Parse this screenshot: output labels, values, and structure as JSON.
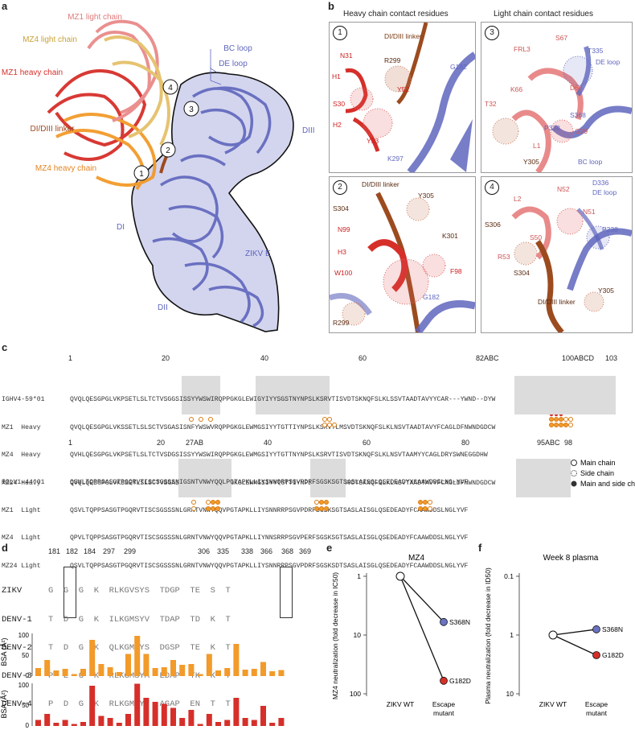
{
  "panels": {
    "a": "a",
    "b": "b",
    "c": "c",
    "d": "d",
    "e": "e",
    "f": "f"
  },
  "panel_a": {
    "labels": {
      "mz1_light": "MZ1 light chain",
      "mz4_light": "MZ4 light chain",
      "mz1_heavy": "MZ1 heavy chain",
      "didiii_linker": "DI/DIII linker",
      "mz4_heavy": "MZ4 heavy chain",
      "bc_loop": "BC loop",
      "de_loop": "DE loop",
      "diii": "DIII",
      "di": "DI",
      "zikv_e": "ZIKV E",
      "dii": "DII"
    },
    "markers": [
      "1",
      "2",
      "3",
      "4"
    ]
  },
  "panel_b": {
    "heavy_title": "Heavy chain contact residues",
    "light_title": "Light chain contact residues",
    "boxes": [
      {
        "num": "1",
        "labels": [
          "DI/DIII linker",
          "N31",
          "R299",
          "G182",
          "H1",
          "Y52",
          "S30",
          "H2",
          "Y53",
          "K297"
        ]
      },
      {
        "num": "3",
        "labels": [
          "S67",
          "FRL3",
          "T335",
          "DE loop",
          "D68",
          "K66",
          "T32",
          "S368",
          "P338",
          "G29",
          "L1",
          "Y305",
          "BC loop"
        ]
      },
      {
        "num": "2",
        "labels": [
          "DI/DIII linker",
          "Y305",
          "S304",
          "N99",
          "K301",
          "H3",
          "F98",
          "W100",
          "G182",
          "R299"
        ]
      },
      {
        "num": "4",
        "labels": [
          "L2",
          "N52",
          "D336",
          "DE loop",
          "N51",
          "S306",
          "P338",
          "S50",
          "R53",
          "S304",
          "Y305",
          "DI/DIII linker"
        ]
      }
    ]
  },
  "panel_c": {
    "heavy_numbering": [
      "1",
      "20",
      "40",
      "60",
      "82ABC",
      "100ABCD",
      "103"
    ],
    "heavy_rows": [
      {
        "name": "IGHV4-59*01",
        "seq": "QVQLQESGPGLVKPSETLSLTCTVSGGSISSYYWSWIRQPPGKGLEWIGYIYYSGSTNYNPSLKSRVTISVDTSKNQFSLKLSSVTAADTAVYYCAR---YWND--DYW"
      },
      {
        "name": "MZ1  Heavy",
        "seq": "QVQLQESGPGLVKSSETLSLSCTVSGASISNFYWSWVRQPPGKGLEWMGSIYYTGTTIYNPSLKSRVTLMSVDTSKNQFSLKLNSVTAADTAVYFCAGLDFNWNDGDCW"
      },
      {
        "name": "MZ4  Heavy",
        "seq": "QVHLQESGPGLVKPSETLSLTCTVSDGSISSYYWSWIRQPPGKGLEWMGSIYYTGTTNYNPSLKSRVTISVDTSKNQFSLKLNSVTAAMYYCAGLDRYSWNEGGDHW"
      },
      {
        "name": "MZ24 Heavy",
        "seq": "QVQLQESGPGLVKSSETLSLSCTVSGASISSYYWSWVRQPPGKGLEWMGSIYYTGTTIYNPSLKSRVTLMSVDTSKNQFSLKLNSVTAADTAVYFCAGLDFNWNDGDCW"
      }
    ],
    "light_numbering": [
      "1",
      "20",
      "27AB",
      "40",
      "60",
      "80",
      "95ABC",
      "98"
    ],
    "light_rows": [
      {
        "name": "IGLV1-44*01",
        "seq": "QSVLTQPPSASGTPGQRVTISCSGSSSNIGSNTVNWYQQLPGTAPKLLIYSNNQRPSGVPDRFSGSKSGTSASLAISGLQSEDEADYYCAAWDDSLNG-YVF"
      },
      {
        "name": "MZ1  Light",
        "seq": "QSVLTQPPSASGTPGQRVTISCSGSSSNLGRNTVNWYQQVPGTAPKLLIYSNNRRPSGVPDRFSGSKSGTSASLAISGLQSEDEADYFCAAWDDSLNGLYVF"
      },
      {
        "name": "MZ4  Light",
        "seq": "QPVLTQPPSASGTPGQRVTISCSGSSSNLGRNTVNWYQQVPGTAPKLLIYNNSRRPSGVPERFSGSKSGTSASLAISGLQSEDEADYFCAAWDDSLNGLYVF"
      },
      {
        "name": "MZ24 Light",
        "seq": "QSVLTQPPSASGTPGQRVTISCSGSSSNLGRNTVNWYQQVPGTAPKLLIYSNNRRPSGVPDRFSGSKSDTSASLAISGLQSEDEADYFCAAWDDSLNGLYVF"
      }
    ],
    "legend": [
      "Main chain",
      "Side chain",
      "Main and side chain"
    ]
  },
  "panel_d": {
    "positions": [
      "181",
      "182",
      "184",
      "297",
      "299",
      "306",
      "335",
      "338",
      "366",
      "368",
      "369"
    ],
    "rows": [
      {
        "name": "ZIKV",
        "seq": "G  G  G  K  RLKGVSYS  TDGP  TE  S  T"
      },
      {
        "name": "DENV-1",
        "seq": "T  D  G  K  ILKGMSYV  TDAP  TD  K  T"
      },
      {
        "name": "DENV-2",
        "seq": "T  D  G  K  QLKGMSYS  DGSP  TE  K  T"
      },
      {
        "name": "DENV-3",
        "seq": "P  E  G  K  RLKGMSYA  EDAP  TK  K  T"
      },
      {
        "name": "DENV-4",
        "seq": "P  D  G  K  RLKGMSYT  AGAP  EN  T  T"
      }
    ],
    "bsa_label": "BSA (Å²)",
    "bsa_ticks": [
      "0",
      "50",
      "100"
    ],
    "bsa_orange": [
      20,
      40,
      14,
      18,
      5,
      18,
      90,
      30,
      22,
      10,
      55,
      100,
      55,
      20,
      22,
      40,
      28,
      30,
      5,
      55,
      14,
      20,
      80,
      16,
      18,
      35,
      12,
      15
    ],
    "bsa_red": [
      15,
      30,
      8,
      15,
      5,
      10,
      100,
      25,
      20,
      8,
      30,
      105,
      70,
      60,
      55,
      45,
      20,
      40,
      5,
      30,
      10,
      15,
      70,
      20,
      15,
      50,
      8,
      20
    ]
  },
  "chart_data": [
    {
      "type": "line",
      "title": "MZ4",
      "ylabel": "MZ4 neutralization (fold decrease in IC50)",
      "y_scale": "log",
      "ylim": [
        100,
        1
      ],
      "yticks": [
        "1",
        "10",
        "100"
      ],
      "categories": [
        "ZIKV WT",
        "Escape mutant"
      ],
      "series": [
        {
          "name": "S368N",
          "values": [
            1,
            6
          ]
        },
        {
          "name": "G182D",
          "values": [
            1,
            60
          ]
        }
      ]
    },
    {
      "type": "line",
      "title": "Week 8 plasma",
      "ylabel": "Plasma neutralization (fold decrease in ID50)",
      "y_scale": "log",
      "ylim": [
        10,
        0.1
      ],
      "yticks": [
        "0.1",
        "1",
        "10"
      ],
      "categories": [
        "ZIKV WT",
        "Escape mutant"
      ],
      "series": [
        {
          "name": "S368N",
          "values": [
            1,
            0.8
          ]
        },
        {
          "name": "G182D",
          "values": [
            1,
            2.2
          ]
        }
      ]
    }
  ],
  "colors": {
    "blue": "#6b72c2",
    "red": "#d62f2a",
    "orange": "#f29a2a",
    "salmon": "#e98a8a",
    "brown": "#9c4b1f",
    "tan": "#c9a86a",
    "purple": "#9b2a9b",
    "grey": "#d8d8d8"
  }
}
